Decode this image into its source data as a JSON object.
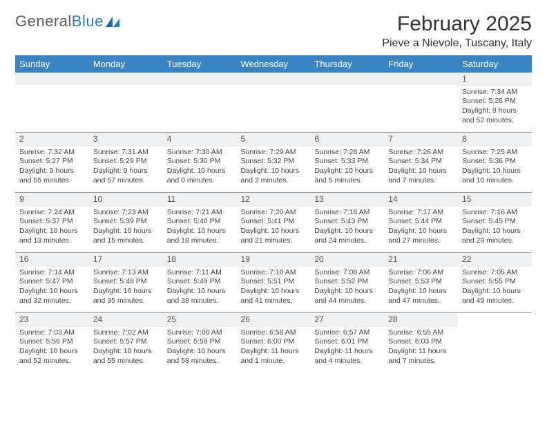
{
  "logo": {
    "text1": "General",
    "text2": "Blue"
  },
  "title": "February 2025",
  "location": "Pieve a Nievole, Tuscany, Italy",
  "colors": {
    "header_bg": "#3a84c4",
    "header_text": "#ffffff",
    "daynum_bg": "#eff0f1",
    "border": "#8aa3b8",
    "text": "#333333",
    "logo_gray": "#5a5a5a",
    "logo_blue": "#2b7bbf"
  },
  "weekdays": [
    "Sunday",
    "Monday",
    "Tuesday",
    "Wednesday",
    "Thursday",
    "Friday",
    "Saturday"
  ],
  "weeks": [
    [
      {
        "empty": true
      },
      {
        "empty": true
      },
      {
        "empty": true
      },
      {
        "empty": true
      },
      {
        "empty": true
      },
      {
        "empty": true
      },
      {
        "day": "1",
        "sunrise": "Sunrise: 7:34 AM",
        "sunset": "Sunset: 5:26 PM",
        "daylight1": "Daylight: 9 hours",
        "daylight2": "and 52 minutes."
      }
    ],
    [
      {
        "day": "2",
        "sunrise": "Sunrise: 7:32 AM",
        "sunset": "Sunset: 5:27 PM",
        "daylight1": "Daylight: 9 hours",
        "daylight2": "and 55 minutes."
      },
      {
        "day": "3",
        "sunrise": "Sunrise: 7:31 AM",
        "sunset": "Sunset: 5:29 PM",
        "daylight1": "Daylight: 9 hours",
        "daylight2": "and 57 minutes."
      },
      {
        "day": "4",
        "sunrise": "Sunrise: 7:30 AM",
        "sunset": "Sunset: 5:30 PM",
        "daylight1": "Daylight: 10 hours",
        "daylight2": "and 0 minutes."
      },
      {
        "day": "5",
        "sunrise": "Sunrise: 7:29 AM",
        "sunset": "Sunset: 5:32 PM",
        "daylight1": "Daylight: 10 hours",
        "daylight2": "and 2 minutes."
      },
      {
        "day": "6",
        "sunrise": "Sunrise: 7:28 AM",
        "sunset": "Sunset: 5:33 PM",
        "daylight1": "Daylight: 10 hours",
        "daylight2": "and 5 minutes."
      },
      {
        "day": "7",
        "sunrise": "Sunrise: 7:26 AM",
        "sunset": "Sunset: 5:34 PM",
        "daylight1": "Daylight: 10 hours",
        "daylight2": "and 7 minutes."
      },
      {
        "day": "8",
        "sunrise": "Sunrise: 7:25 AM",
        "sunset": "Sunset: 5:36 PM",
        "daylight1": "Daylight: 10 hours",
        "daylight2": "and 10 minutes."
      }
    ],
    [
      {
        "day": "9",
        "sunrise": "Sunrise: 7:24 AM",
        "sunset": "Sunset: 5:37 PM",
        "daylight1": "Daylight: 10 hours",
        "daylight2": "and 13 minutes."
      },
      {
        "day": "10",
        "sunrise": "Sunrise: 7:23 AM",
        "sunset": "Sunset: 5:39 PM",
        "daylight1": "Daylight: 10 hours",
        "daylight2": "and 15 minutes."
      },
      {
        "day": "11",
        "sunrise": "Sunrise: 7:21 AM",
        "sunset": "Sunset: 5:40 PM",
        "daylight1": "Daylight: 10 hours",
        "daylight2": "and 18 minutes."
      },
      {
        "day": "12",
        "sunrise": "Sunrise: 7:20 AM",
        "sunset": "Sunset: 5:41 PM",
        "daylight1": "Daylight: 10 hours",
        "daylight2": "and 21 minutes."
      },
      {
        "day": "13",
        "sunrise": "Sunrise: 7:18 AM",
        "sunset": "Sunset: 5:43 PM",
        "daylight1": "Daylight: 10 hours",
        "daylight2": "and 24 minutes."
      },
      {
        "day": "14",
        "sunrise": "Sunrise: 7:17 AM",
        "sunset": "Sunset: 5:44 PM",
        "daylight1": "Daylight: 10 hours",
        "daylight2": "and 27 minutes."
      },
      {
        "day": "15",
        "sunrise": "Sunrise: 7:16 AM",
        "sunset": "Sunset: 5:45 PM",
        "daylight1": "Daylight: 10 hours",
        "daylight2": "and 29 minutes."
      }
    ],
    [
      {
        "day": "16",
        "sunrise": "Sunrise: 7:14 AM",
        "sunset": "Sunset: 5:47 PM",
        "daylight1": "Daylight: 10 hours",
        "daylight2": "and 32 minutes."
      },
      {
        "day": "17",
        "sunrise": "Sunrise: 7:13 AM",
        "sunset": "Sunset: 5:48 PM",
        "daylight1": "Daylight: 10 hours",
        "daylight2": "and 35 minutes."
      },
      {
        "day": "18",
        "sunrise": "Sunrise: 7:11 AM",
        "sunset": "Sunset: 5:49 PM",
        "daylight1": "Daylight: 10 hours",
        "daylight2": "and 38 minutes."
      },
      {
        "day": "19",
        "sunrise": "Sunrise: 7:10 AM",
        "sunset": "Sunset: 5:51 PM",
        "daylight1": "Daylight: 10 hours",
        "daylight2": "and 41 minutes."
      },
      {
        "day": "20",
        "sunrise": "Sunrise: 7:08 AM",
        "sunset": "Sunset: 5:52 PM",
        "daylight1": "Daylight: 10 hours",
        "daylight2": "and 44 minutes."
      },
      {
        "day": "21",
        "sunrise": "Sunrise: 7:06 AM",
        "sunset": "Sunset: 5:53 PM",
        "daylight1": "Daylight: 10 hours",
        "daylight2": "and 47 minutes."
      },
      {
        "day": "22",
        "sunrise": "Sunrise: 7:05 AM",
        "sunset": "Sunset: 5:55 PM",
        "daylight1": "Daylight: 10 hours",
        "daylight2": "and 49 minutes."
      }
    ],
    [
      {
        "day": "23",
        "sunrise": "Sunrise: 7:03 AM",
        "sunset": "Sunset: 5:56 PM",
        "daylight1": "Daylight: 10 hours",
        "daylight2": "and 52 minutes."
      },
      {
        "day": "24",
        "sunrise": "Sunrise: 7:02 AM",
        "sunset": "Sunset: 5:57 PM",
        "daylight1": "Daylight: 10 hours",
        "daylight2": "and 55 minutes."
      },
      {
        "day": "25",
        "sunrise": "Sunrise: 7:00 AM",
        "sunset": "Sunset: 5:59 PM",
        "daylight1": "Daylight: 10 hours",
        "daylight2": "and 58 minutes."
      },
      {
        "day": "26",
        "sunrise": "Sunrise: 6:58 AM",
        "sunset": "Sunset: 6:00 PM",
        "daylight1": "Daylight: 11 hours",
        "daylight2": "and 1 minute."
      },
      {
        "day": "27",
        "sunrise": "Sunrise: 6:57 AM",
        "sunset": "Sunset: 6:01 PM",
        "daylight1": "Daylight: 11 hours",
        "daylight2": "and 4 minutes."
      },
      {
        "day": "28",
        "sunrise": "Sunrise: 6:55 AM",
        "sunset": "Sunset: 6:03 PM",
        "daylight1": "Daylight: 11 hours",
        "daylight2": "and 7 minutes."
      },
      {
        "empty": true,
        "noBg": true
      }
    ]
  ]
}
